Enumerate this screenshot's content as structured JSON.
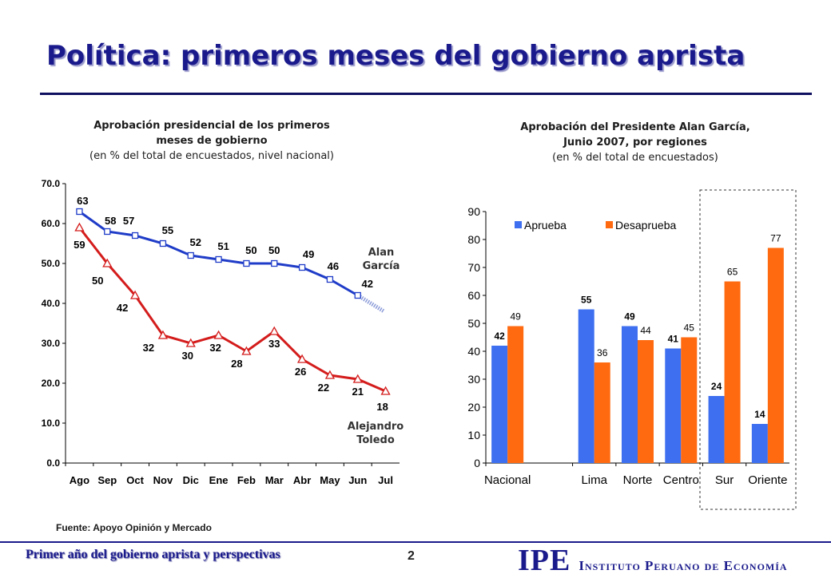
{
  "slide": {
    "title": "Política: primeros meses del gobierno aprista",
    "source": "Fuente: Apoyo Opinión y Mercado",
    "footer_left": "Primer año del gobierno aprista y perspectivas",
    "page_number": "2",
    "logo_mark": "IPE",
    "logo_text": "Instituto Peruano de Economía"
  },
  "colors": {
    "garcia_line": "#1f3cc8",
    "toledo_line": "#d41c1c",
    "aprueba": "#3d6ff0",
    "desaprueba": "#ff6a10",
    "title": "#1a1a8c"
  },
  "chart_data": [
    {
      "type": "line",
      "title": "Aprobación presidencial de los primeros meses de gobierno",
      "subtitle": "(en % del total de encuestados, nivel nacional)",
      "categories": [
        "Ago",
        "Sep",
        "Oct",
        "Nov",
        "Dic",
        "Ene",
        "Feb",
        "Mar",
        "Abr",
        "May",
        "Jun",
        "Jul"
      ],
      "series": [
        {
          "name": "Alan García",
          "values": [
            63,
            58,
            57,
            55,
            52,
            51,
            50,
            50,
            49,
            46,
            42,
            null
          ],
          "projection_to": 38
        },
        {
          "name": "Alejandro Toledo",
          "values": [
            59,
            50,
            42,
            32,
            30,
            32,
            28,
            33,
            26,
            22,
            21,
            18
          ]
        }
      ],
      "series_labels": {
        "garcia": [
          "Alan",
          "García"
        ],
        "toledo": [
          "Alejandro",
          "Toledo"
        ]
      },
      "ylim": [
        0,
        70
      ],
      "yticks": [
        "0.0",
        "10.0",
        "20.0",
        "30.0",
        "40.0",
        "50.0",
        "60.0",
        "70.0"
      ],
      "grid": false
    },
    {
      "type": "bar",
      "title": "Aprobación del Presidente Alan García, Junio 2007, por regiones",
      "subtitle": "(en % del total de encuestados)",
      "categories": [
        "Nacional",
        "Lima",
        "Norte",
        "Centro",
        "Sur",
        "Oriente"
      ],
      "series": [
        {
          "name": "Aprueba",
          "values": [
            42,
            55,
            49,
            41,
            24,
            14
          ]
        },
        {
          "name": "Desaprueba",
          "values": [
            49,
            36,
            44,
            45,
            65,
            77
          ]
        }
      ],
      "ylim": [
        0,
        90
      ],
      "yticks": [
        "0",
        "10",
        "20",
        "30",
        "40",
        "50",
        "60",
        "70",
        "80",
        "90"
      ],
      "legend": "top-left",
      "grid": false,
      "highlight": [
        "Sur",
        "Oriente"
      ]
    }
  ]
}
